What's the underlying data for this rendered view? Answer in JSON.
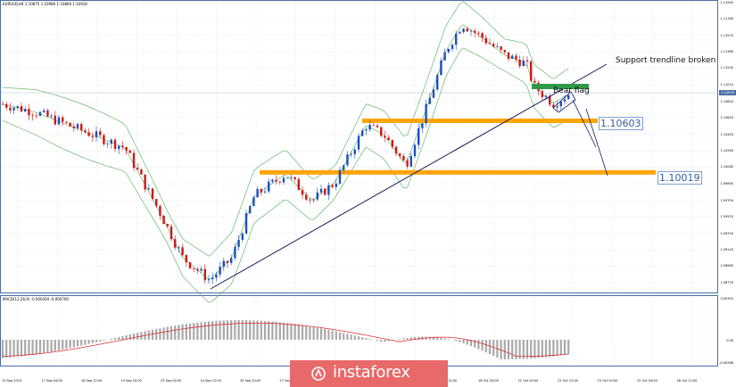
{
  "window": {
    "symbol_title": "EURUSD,H4  1.10875  1.10980  1.10860  1.10918",
    "macd_title": "MACD(12,26,9)  -0.000304  -0.000700"
  },
  "annotations": {
    "support_label": "Support trendline broken",
    "flag_label": "Bear flag",
    "level_1": "1.10603",
    "level_2": "1.10019"
  },
  "logo": {
    "text": "instaforex"
  },
  "colors": {
    "bull": "#1f4fbf",
    "bear": "#d01818",
    "bollinger": "#4caf50",
    "zone": "#ffa500",
    "trendline": "#1a1a5e",
    "flag_zone": "#2e9a48",
    "macd_hist": "#a9a9a9",
    "macd_signal": "#e02020",
    "logo_bg": "#e8696a"
  },
  "chart_data": [
    {
      "type": "candlestick",
      "title": "EURUSD,H4",
      "ohlc_header": {
        "open": 1.10875,
        "high": 1.1098,
        "low": 1.1086,
        "close": 1.10918
      },
      "ylabel": "Price",
      "ylim": [
        1.0872,
        1.1194
      ],
      "y_ticks": [
        1.1194,
        1.1176,
        1.1157,
        1.1138,
        1.112,
        1.1101,
        1.1082,
        1.1064,
        1.1045,
        1.1026,
        1.1008,
        1.0989,
        1.097,
        1.0952,
        1.0933,
        1.0914,
        1.0896,
        1.0877
      ],
      "current_price": 1.10918,
      "x_ticks": [
        "13 Sep 2019",
        "17 Sep 04:00",
        "18 Sep 12:00",
        "19 Sep 20:00",
        "23 Sep 04:00",
        "24 Sep 12:00",
        "25 Sep 20:00",
        "27 Sep 04:00",
        "30 Sep 12:00",
        "1 Oct 20:00",
        "3 Oct 04:00",
        "4 Oct 12:00",
        "18 Oct 20:00",
        "21 Oct 04:00",
        "22 Oct 12:00",
        "23 Oct 20:00",
        "25 Oct 04:00",
        "28 Oct 12:00"
      ],
      "indicators": [
        "Bollinger Bands (upper, middle, lower)"
      ],
      "horizontal_levels": [
        {
          "label": "1.10603",
          "value": 1.10603
        },
        {
          "label": "1.10019",
          "value": 1.10019
        }
      ],
      "trendline": {
        "label": "Support trendline broken",
        "from": {
          "x_frac": 0.29,
          "price": 1.0877
        },
        "to": {
          "x_frac": 0.85,
          "price": 1.1112
        }
      },
      "pattern": "Bear flag",
      "grid": true
    },
    {
      "type": "bar",
      "title": "MACD(12,26,9)",
      "values_header": {
        "macd": -0.000304,
        "signal": -0.0007
      },
      "ylim": [
        -0.00286,
        0.00302
      ],
      "y_ticks": [
        0.00302,
        0.0,
        -0.00286
      ],
      "series": [
        {
          "name": "MACD histogram",
          "color": "#a9a9a9"
        },
        {
          "name": "Signal",
          "color": "#e02020",
          "style": "line"
        }
      ]
    }
  ]
}
